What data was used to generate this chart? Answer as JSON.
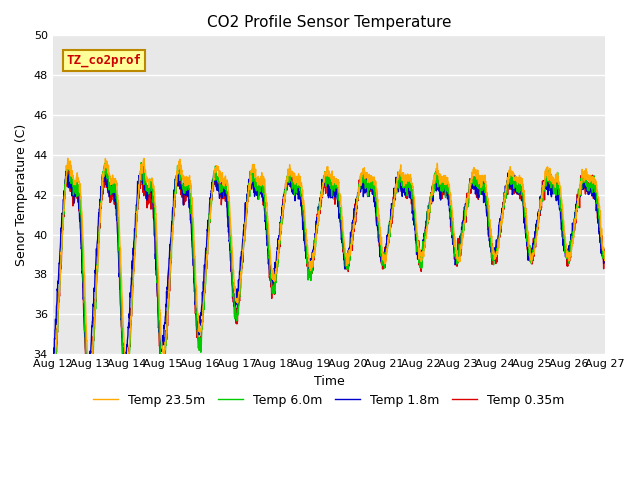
{
  "title": "CO2 Profile Sensor Temperature",
  "ylabel": "Senor Temperature (C)",
  "xlabel": "Time",
  "ylim": [
    34,
    50
  ],
  "xlim_days": [
    0,
    15
  ],
  "background_color": "#e8e8e8",
  "grid_color": "#ffffff",
  "annotation_text": "TZ_co2prof",
  "annotation_color": "#cc0000",
  "annotation_bg": "#ffff99",
  "annotation_edge": "#bb8800",
  "line_colors": [
    "#dd0000",
    "#0000cc",
    "#00cc00",
    "#ffaa00"
  ],
  "line_labels": [
    "Temp 0.35m",
    "Temp 1.8m",
    "Temp 6.0m",
    "Temp 23.5m"
  ],
  "line_width": 1.0,
  "tick_fontsize": 8,
  "axis_label_fontsize": 9,
  "title_fontsize": 11,
  "legend_fontsize": 9,
  "x_tick_labels": [
    "Aug 12",
    "Aug 13",
    "Aug 14",
    "Aug 15",
    "Aug 16",
    "Aug 17",
    "Aug 18",
    "Aug 19",
    "Aug 20",
    "Aug 21",
    "Aug 22",
    "Aug 23",
    "Aug 24",
    "Aug 25",
    "Aug 26",
    "Aug 27"
  ],
  "x_tick_positions": [
    0,
    1,
    2,
    3,
    4,
    5,
    6,
    7,
    8,
    9,
    10,
    11,
    12,
    13,
    14,
    15
  ]
}
